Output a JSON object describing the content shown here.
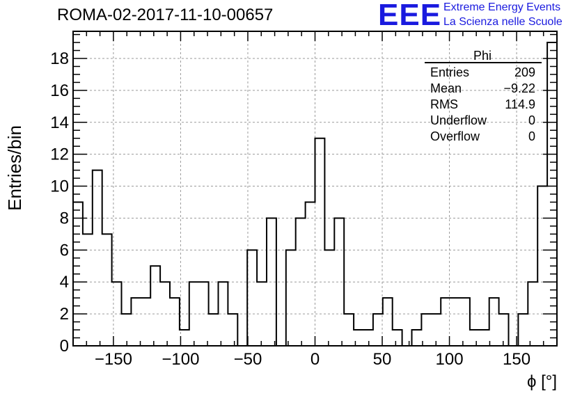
{
  "header": {
    "title": "ROMA-02-2017-11-10-00657",
    "logo_text": "EEE",
    "tagline_1": "Extreme Energy Events",
    "tagline_2": "La Scienza nelle Scuole"
  },
  "stats": {
    "name": "Phi",
    "rows": [
      {
        "label": "Entries",
        "value": "209"
      },
      {
        "label": "Mean",
        "value": "−9.22"
      },
      {
        "label": "RMS",
        "value": "114.9"
      },
      {
        "label": "Underflow",
        "value": "0"
      },
      {
        "label": "Overflow",
        "value": "0"
      }
    ]
  },
  "colors": {
    "logo": "#1a1adf",
    "line": "#000000",
    "grid": "#999999"
  },
  "chart_data": {
    "type": "histogram",
    "xlabel": "ϕ [°]",
    "ylabel": "Entries/bin",
    "xlim": [
      -180,
      180
    ],
    "ylim": [
      0,
      19.7
    ],
    "grid": true,
    "bin_width": 7.2,
    "values": [
      9,
      7,
      11,
      7,
      4,
      2,
      3,
      3,
      5,
      4,
      3,
      1,
      4,
      4,
      2,
      4,
      2,
      0,
      6,
      4,
      8,
      0,
      6,
      8,
      9,
      13,
      6,
      8,
      2,
      1,
      1,
      2,
      3,
      1,
      0,
      1,
      2,
      2,
      3,
      3,
      3,
      1,
      1,
      3,
      2,
      0,
      2,
      4,
      10,
      19
    ],
    "xticks": [
      -150,
      -100,
      -50,
      0,
      50,
      100,
      150
    ],
    "xtick_labels": [
      "−150",
      "−100",
      "−50",
      "0",
      "50",
      "100",
      "150"
    ],
    "yticks": [
      0,
      2,
      4,
      6,
      8,
      10,
      12,
      14,
      16,
      18
    ],
    "ytick_labels": [
      "0",
      "2",
      "4",
      "6",
      "8",
      "10",
      "12",
      "14",
      "16",
      "18"
    ]
  }
}
